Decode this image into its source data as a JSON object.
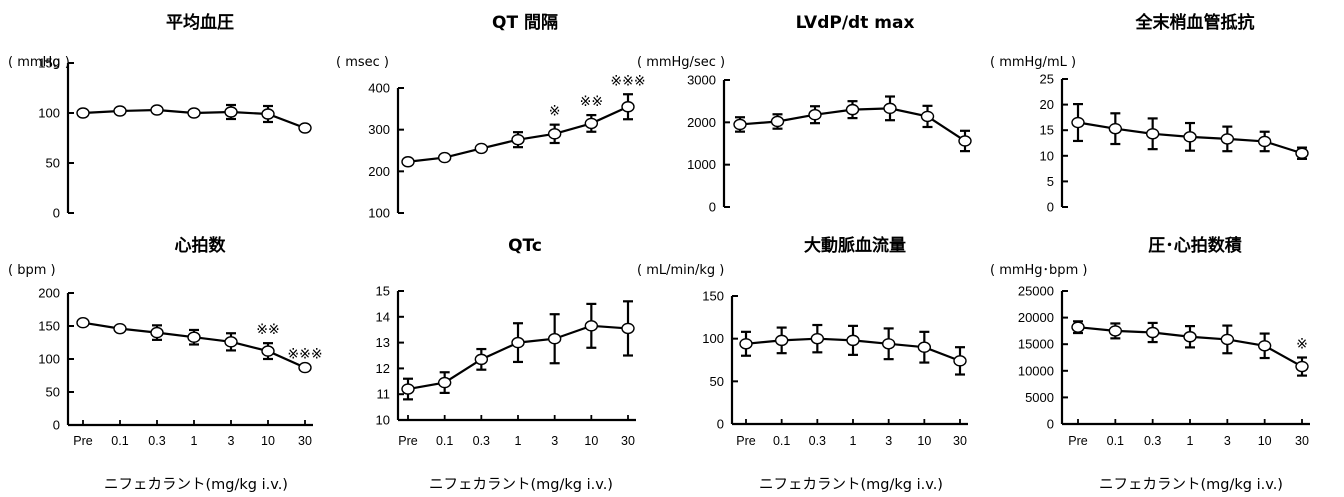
{
  "x_categories": [
    "Pre",
    "0.1",
    "0.3",
    "1",
    "3",
    "10",
    "30"
  ],
  "x_axis_label": "ニフェカラント(mg/kg i.v.)",
  "chart_data": [
    {
      "type": "line",
      "title": "平均血圧",
      "unit": "( mmHg )",
      "ylim": [
        0,
        150
      ],
      "yticks": [
        0,
        50,
        100,
        150
      ],
      "values": [
        100,
        102,
        103,
        100,
        101,
        99,
        85
      ],
      "errors": [
        0,
        0,
        0,
        0,
        7,
        8,
        0
      ],
      "marks": [
        "",
        "",
        "",
        "",
        "",
        "",
        ""
      ],
      "show_xticks": false
    },
    {
      "type": "line",
      "title": "QT 間隔",
      "unit": "( msec )",
      "ylim": [
        100,
        400
      ],
      "yticks": [
        100,
        200,
        300,
        400
      ],
      "values": [
        223,
        233,
        255,
        276,
        290,
        315,
        355
      ],
      "errors": [
        0,
        0,
        0,
        18,
        22,
        20,
        30
      ],
      "marks": [
        "",
        "",
        "",
        "",
        "※",
        "※※",
        "※※※"
      ],
      "show_xticks": false
    },
    {
      "type": "line",
      "title": "LVdP/dt max",
      "unit": "( mmHg/sec )",
      "ylim": [
        0,
        3000
      ],
      "yticks": [
        0,
        1000,
        2000,
        3000
      ],
      "values": [
        1950,
        2020,
        2180,
        2300,
        2330,
        2140,
        1560
      ],
      "errors": [
        170,
        170,
        200,
        200,
        280,
        250,
        240
      ],
      "marks": [
        "",
        "",
        "",
        "",
        "",
        "",
        ""
      ],
      "show_xticks": false
    },
    {
      "type": "line",
      "title": "全末梢血管抵抗",
      "unit": "( mmHg/mL )",
      "ylim": [
        0,
        25
      ],
      "yticks": [
        0,
        5,
        10,
        15,
        20,
        25
      ],
      "values": [
        16.5,
        15.3,
        14.3,
        13.7,
        13.3,
        12.8,
        10.5
      ],
      "errors": [
        3.6,
        3.0,
        3.0,
        2.7,
        2.4,
        1.9,
        1.1
      ],
      "marks": [
        "",
        "",
        "",
        "",
        "",
        "",
        ""
      ],
      "show_xticks": false
    },
    {
      "type": "line",
      "title": "心拍数",
      "unit": "( bpm )",
      "ylim": [
        0,
        200
      ],
      "yticks": [
        0,
        50,
        100,
        150,
        200
      ],
      "values": [
        155,
        146,
        140,
        133,
        126,
        112,
        87
      ],
      "errors": [
        0,
        0,
        11,
        11,
        13,
        12,
        0
      ],
      "marks": [
        "",
        "",
        "",
        "",
        "",
        "※※",
        "※※※"
      ],
      "show_xticks": true
    },
    {
      "type": "line",
      "title": "QTc",
      "unit": "",
      "ylim": [
        10,
        15
      ],
      "yticks": [
        10,
        11,
        12,
        13,
        14,
        15
      ],
      "values": [
        11.2,
        11.45,
        12.35,
        13.0,
        13.15,
        13.65,
        13.55
      ],
      "errors": [
        0.4,
        0.4,
        0.4,
        0.75,
        0.95,
        0.85,
        1.05
      ],
      "marks": [
        "",
        "",
        "",
        "",
        "",
        "",
        ""
      ],
      "show_xticks": true
    },
    {
      "type": "line",
      "title": "大動脈血流量",
      "unit": "( mL/min/kg )",
      "ylim": [
        0,
        150
      ],
      "yticks": [
        0,
        50,
        100,
        150
      ],
      "values": [
        94,
        98,
        100,
        98,
        94,
        90,
        74
      ],
      "errors": [
        14,
        15,
        16,
        17,
        18,
        18,
        16
      ],
      "marks": [
        "",
        "",
        "",
        "",
        "",
        "",
        ""
      ],
      "show_xticks": true
    },
    {
      "type": "line",
      "title": "圧･心拍数積",
      "unit": "( mmHg･bpm )",
      "ylim": [
        0,
        25000
      ],
      "yticks": [
        0,
        5000,
        10000,
        15000,
        20000,
        25000
      ],
      "values": [
        18200,
        17500,
        17200,
        16400,
        15900,
        14700,
        10800
      ],
      "errors": [
        1100,
        1400,
        1800,
        2000,
        2600,
        2300,
        1700
      ],
      "marks": [
        "",
        "",
        "",
        "",
        "",
        "",
        "※"
      ],
      "show_xticks": true
    }
  ]
}
